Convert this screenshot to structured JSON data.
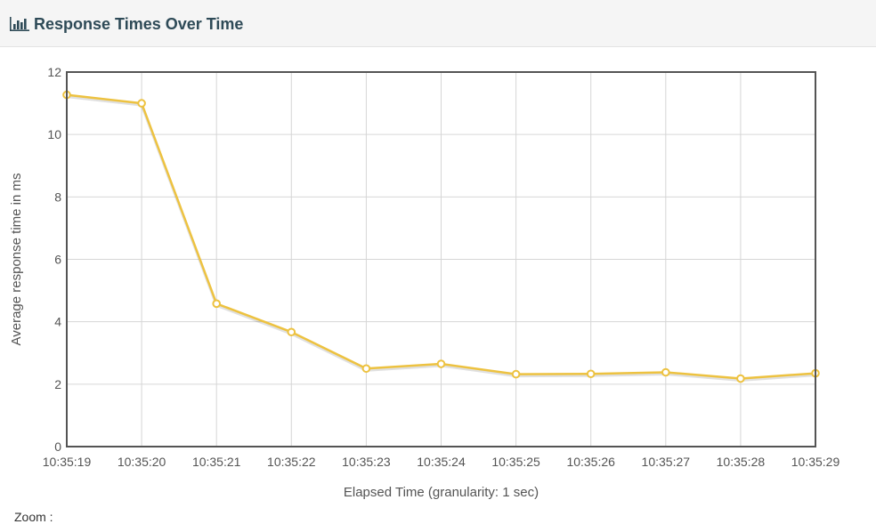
{
  "panel": {
    "title": "Response Times Over Time",
    "icon": "bar-chart-icon"
  },
  "zoom_label": "Zoom :",
  "colors": {
    "series": "#edc240",
    "grid": "#d6d6d6",
    "axis_border": "#545454",
    "header_bg": "#f5f5f5"
  },
  "chart_data": {
    "type": "line",
    "xlabel": "Elapsed Time (granularity: 1 sec)",
    "ylabel": "Average response time in ms",
    "ylim": [
      0,
      12
    ],
    "yticks": [
      0,
      2,
      4,
      6,
      8,
      10,
      12
    ],
    "grid": true,
    "x": [
      "10:35:19",
      "10:35:20",
      "10:35:21",
      "10:35:22",
      "10:35:23",
      "10:35:24",
      "10:35:25",
      "10:35:26",
      "10:35:27",
      "10:35:28",
      "10:35:29"
    ],
    "series": [
      {
        "values": [
          11.27,
          11.0,
          4.58,
          3.67,
          2.5,
          2.65,
          2.32,
          2.33,
          2.38,
          2.18,
          2.35
        ]
      }
    ]
  }
}
